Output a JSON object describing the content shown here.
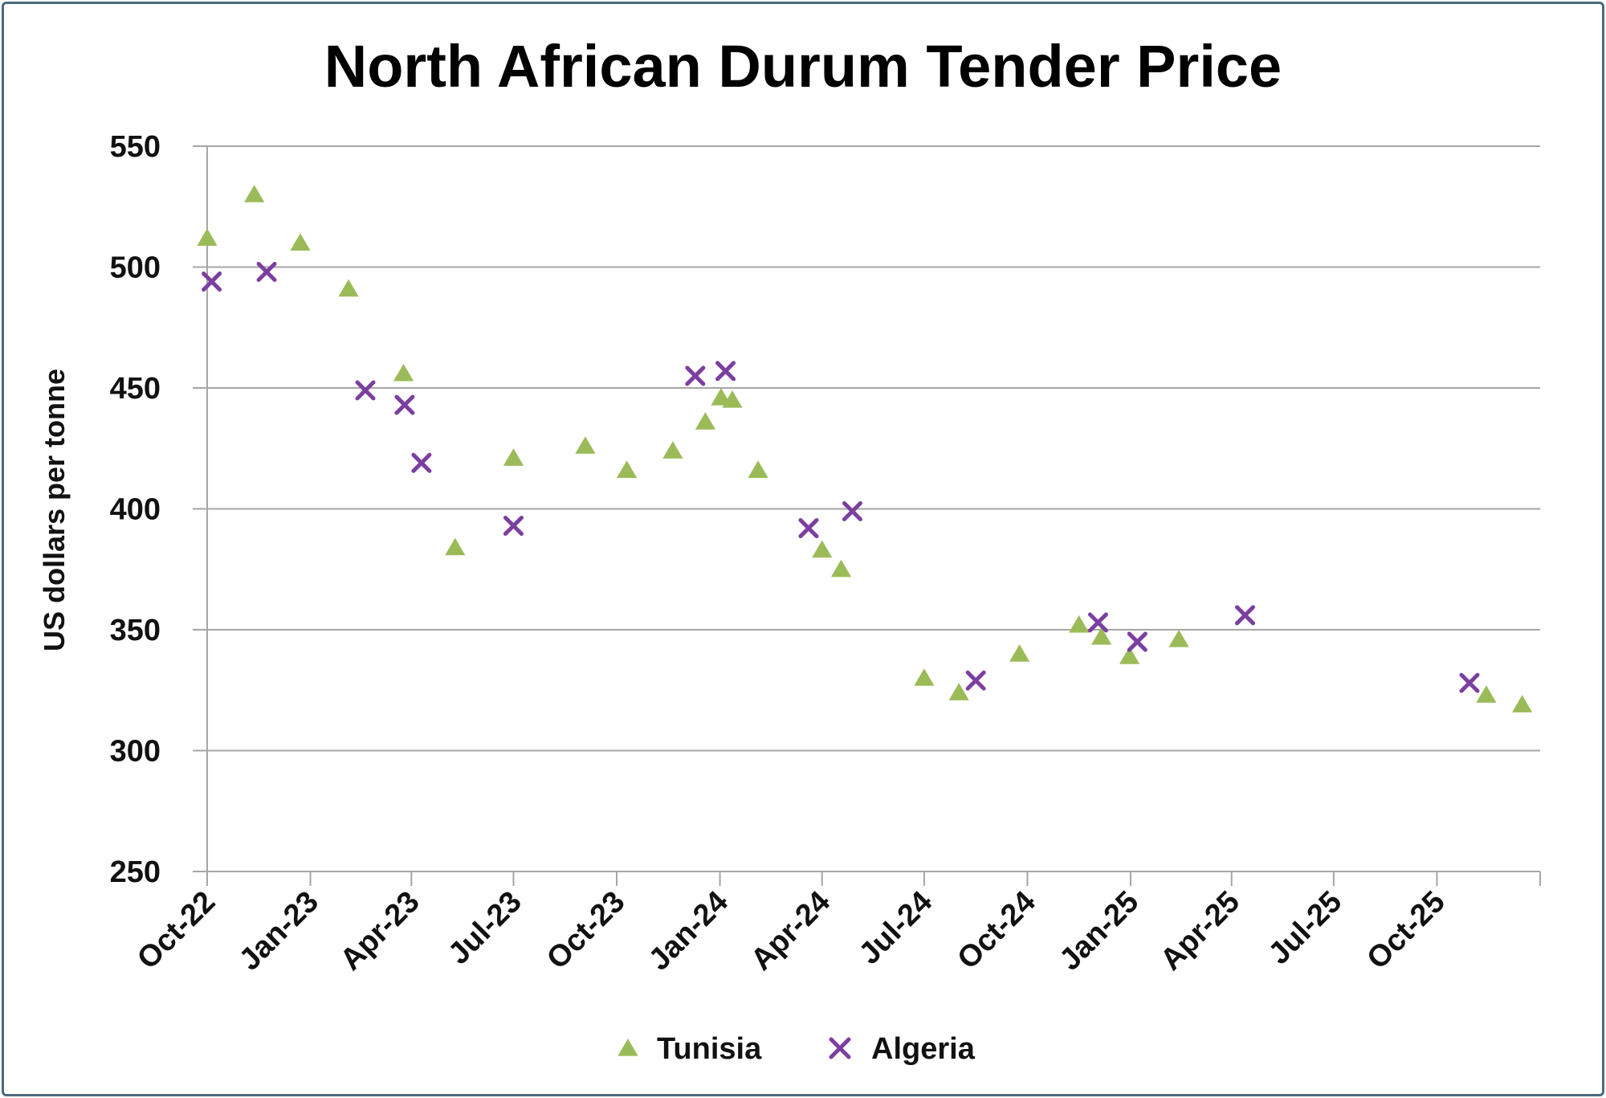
{
  "chart_data": {
    "type": "scatter",
    "title": "North African Durum Tender Price",
    "xlabel": "",
    "ylabel": "US dollars per tonne",
    "ylim": [
      250,
      550
    ],
    "yticks": [
      250,
      300,
      350,
      400,
      450,
      500,
      550
    ],
    "xlim": [
      "2022-10-01",
      "2026-01-01"
    ],
    "xticks": [
      "Oct-22",
      "Jan-23",
      "Apr-23",
      "Jul-23",
      "Oct-23",
      "Jan-24",
      "Apr-24",
      "Jul-24",
      "Oct-24",
      "Jan-25",
      "Apr-25",
      "Jul-25",
      "Oct-25"
    ],
    "grid": "horizontal",
    "legend_position": "bottom",
    "colors": {
      "Tunisia": "#9bbb59",
      "Algeria": "#7b3fa0",
      "grid": "#a6a6a6",
      "border": "#4a6b7c"
    },
    "series": [
      {
        "name": "Tunisia",
        "marker": "triangle",
        "points": [
          {
            "x": "2022-10-01",
            "y": 512
          },
          {
            "x": "2022-11-12",
            "y": 530
          },
          {
            "x": "2022-12-23",
            "y": 510
          },
          {
            "x": "2023-02-04",
            "y": 491
          },
          {
            "x": "2023-03-25",
            "y": 456
          },
          {
            "x": "2023-05-10",
            "y": 384
          },
          {
            "x": "2023-07-01",
            "y": 421
          },
          {
            "x": "2023-09-03",
            "y": 426
          },
          {
            "x": "2023-10-10",
            "y": 416
          },
          {
            "x": "2023-11-20",
            "y": 424
          },
          {
            "x": "2023-12-19",
            "y": 436
          },
          {
            "x": "2024-01-02",
            "y": 446
          },
          {
            "x": "2024-01-12",
            "y": 445
          },
          {
            "x": "2024-02-04",
            "y": 416
          },
          {
            "x": "2024-04-01",
            "y": 383
          },
          {
            "x": "2024-04-18",
            "y": 375
          },
          {
            "x": "2024-07-01",
            "y": 330
          },
          {
            "x": "2024-08-01",
            "y": 324
          },
          {
            "x": "2024-09-24",
            "y": 340
          },
          {
            "x": "2024-11-16",
            "y": 352
          },
          {
            "x": "2024-12-06",
            "y": 347
          },
          {
            "x": "2024-12-31",
            "y": 339
          },
          {
            "x": "2025-02-13",
            "y": 346
          },
          {
            "x": "2025-11-14",
            "y": 323
          },
          {
            "x": "2025-12-16",
            "y": 319
          }
        ]
      },
      {
        "name": "Algeria",
        "marker": "x",
        "points": [
          {
            "x": "2022-10-05",
            "y": 494
          },
          {
            "x": "2022-11-23",
            "y": 498
          },
          {
            "x": "2023-02-19",
            "y": 449
          },
          {
            "x": "2023-03-26",
            "y": 443
          },
          {
            "x": "2023-04-10",
            "y": 419
          },
          {
            "x": "2023-07-01",
            "y": 393
          },
          {
            "x": "2023-12-10",
            "y": 455
          },
          {
            "x": "2024-01-06",
            "y": 457
          },
          {
            "x": "2024-03-20",
            "y": 392
          },
          {
            "x": "2024-04-28",
            "y": 399
          },
          {
            "x": "2024-08-16",
            "y": 329
          },
          {
            "x": "2024-12-03",
            "y": 353
          },
          {
            "x": "2025-01-07",
            "y": 345
          },
          {
            "x": "2025-04-13",
            "y": 356
          },
          {
            "x": "2025-10-30",
            "y": 328
          }
        ]
      }
    ]
  }
}
